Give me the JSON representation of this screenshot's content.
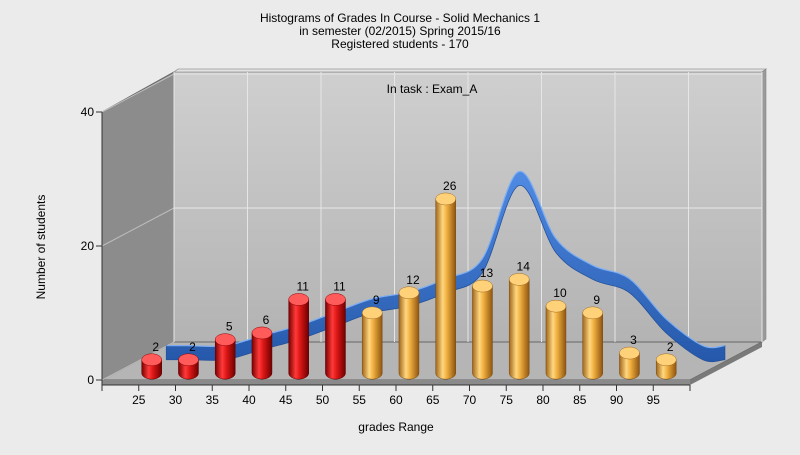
{
  "chart_data": {
    "type": "bar",
    "title": "Histograms of Grades  In Course - Solid Mechanics 1",
    "subtitle": "in semester  (02/2015) Spring 2015/16",
    "subtitle2": "Registered students - 170",
    "annotation": "In task : Exam_A",
    "xlabel": "grades Range",
    "ylabel": "Number of students",
    "ylim": [
      0,
      40
    ],
    "yticks": [
      0,
      20,
      40
    ],
    "categories": [
      "25",
      "30",
      "35",
      "40",
      "45",
      "50",
      "55",
      "60",
      "65",
      "70",
      "75",
      "80",
      "85",
      "90",
      "95"
    ],
    "series": [
      {
        "values": [
          2,
          2,
          5,
          6,
          11,
          11,
          9,
          12,
          26,
          13,
          14,
          10,
          9,
          3,
          2
        ]
      }
    ],
    "curve": [
      2,
      2,
      3.5,
      5,
      7,
      9,
      10,
      12,
      15,
      28,
      18,
      14,
      12,
      6,
      2
    ],
    "colors": {
      "fail_bar": "#e01818",
      "pass_bar": "#f0b040",
      "curve": "#2f6fce",
      "background": "#ebebeb",
      "back_wall": "#c3c3c3",
      "side_wall": "#8c8c8c",
      "floor": "#b5b5b5"
    },
    "fail_threshold": "55",
    "grid": true,
    "legend": "none"
  }
}
